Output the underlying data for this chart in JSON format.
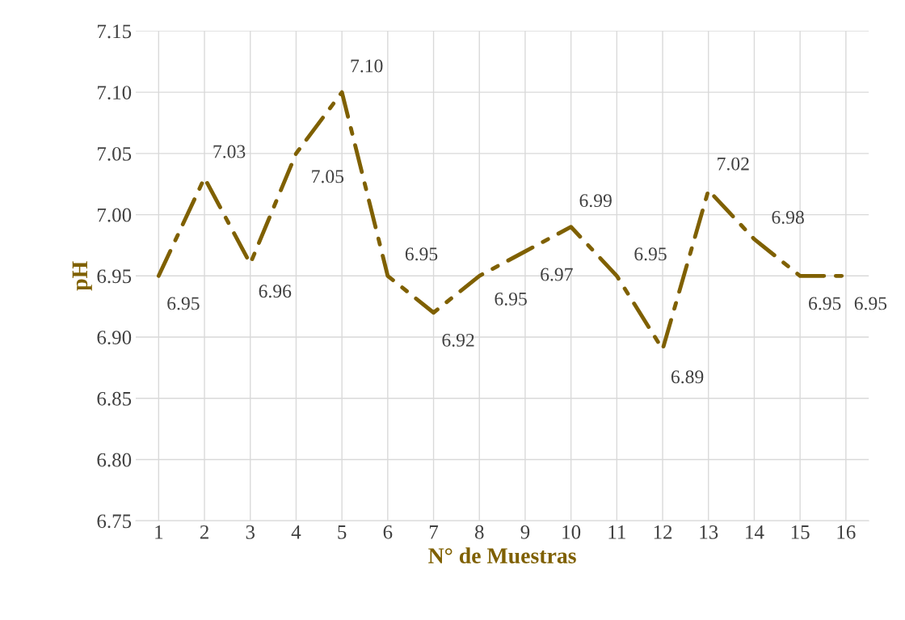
{
  "chart_data": {
    "type": "line",
    "xlabel": "N° de Muestras",
    "ylabel": "pH",
    "categories": [
      "1",
      "2",
      "3",
      "4",
      "5",
      "6",
      "7",
      "8",
      "9",
      "10",
      "11",
      "12",
      "13",
      "14",
      "15",
      "16"
    ],
    "series": [
      {
        "color": "#7f6000",
        "values": [
          6.95,
          7.03,
          6.96,
          7.05,
          7.1,
          6.95,
          6.92,
          6.95,
          6.97,
          6.99,
          6.95,
          6.89,
          7.02,
          6.98,
          6.95,
          6.95
        ],
        "value_labels": [
          "6.95",
          "7.03",
          "6.96",
          "7.05",
          "7.10",
          "6.95",
          "6.92",
          "6.95",
          "6.97",
          "6.99",
          "6.95",
          "6.89",
          "7.02",
          "6.98",
          "6.95",
          "6.95"
        ]
      }
    ],
    "ylim": [
      6.75,
      7.15
    ],
    "yticks": [
      {
        "value": 6.75,
        "label": "6.75"
      },
      {
        "value": 6.8,
        "label": "6.80"
      },
      {
        "value": 6.85,
        "label": "6.85"
      },
      {
        "value": 6.9,
        "label": "6.90"
      },
      {
        "value": 6.95,
        "label": "6.95"
      },
      {
        "value": 7.0,
        "label": "7.00"
      },
      {
        "value": 7.05,
        "label": "7.05"
      },
      {
        "value": 7.1,
        "label": "7.10"
      },
      {
        "value": 7.15,
        "label": "7.15"
      }
    ],
    "grid": true,
    "line_style": "dashed",
    "marker": "none"
  }
}
